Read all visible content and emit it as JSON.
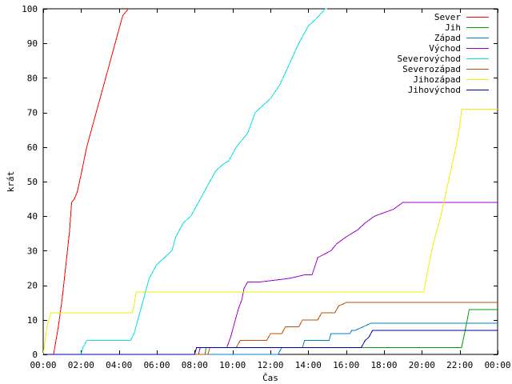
{
  "chart_data": {
    "type": "line",
    "title": "",
    "xlabel": "Čas",
    "ylabel": "krát",
    "xlim": [
      0,
      24
    ],
    "ylim": [
      0,
      100
    ],
    "x_unit": "hours",
    "grid": false,
    "legend": "top-right",
    "xticks": [
      {
        "v": 0,
        "label": "00:00"
      },
      {
        "v": 2,
        "label": "02:00"
      },
      {
        "v": 4,
        "label": "04:00"
      },
      {
        "v": 6,
        "label": "06:00"
      },
      {
        "v": 8,
        "label": "08:00"
      },
      {
        "v": 10,
        "label": "10:00"
      },
      {
        "v": 12,
        "label": "12:00"
      },
      {
        "v": 14,
        "label": "14:00"
      },
      {
        "v": 16,
        "label": "16:00"
      },
      {
        "v": 18,
        "label": "18:00"
      },
      {
        "v": 20,
        "label": "20:00"
      },
      {
        "v": 22,
        "label": "22:00"
      },
      {
        "v": 24,
        "label": "00:00"
      }
    ],
    "yticks": [
      {
        "v": 0,
        "label": "0"
      },
      {
        "v": 10,
        "label": "10"
      },
      {
        "v": 20,
        "label": "20"
      },
      {
        "v": 30,
        "label": "30"
      },
      {
        "v": 40,
        "label": "40"
      },
      {
        "v": 50,
        "label": "50"
      },
      {
        "v": 60,
        "label": "60"
      },
      {
        "v": 70,
        "label": "70"
      },
      {
        "v": 80,
        "label": "80"
      },
      {
        "v": 90,
        "label": "90"
      },
      {
        "v": 100,
        "label": "100"
      }
    ],
    "series": [
      {
        "name": "Sever",
        "color": "#ff0000",
        "x": [
          0,
          0.55,
          0.8,
          1.0,
          1.2,
          1.4,
          1.5,
          1.65,
          1.8,
          2.0,
          2.3,
          2.6,
          3.0,
          3.4,
          3.8,
          4.2,
          4.5
        ],
        "y": [
          0,
          0,
          8,
          16,
          26,
          36,
          44,
          45,
          47,
          52,
          60,
          66,
          74,
          82,
          90,
          98,
          100
        ]
      },
      {
        "name": "Jih",
        "color": "#00a000",
        "x": [
          0,
          8.55,
          8.6,
          22.1,
          22.25,
          22.4,
          22.5,
          23.0,
          24
        ],
        "y": [
          0,
          0,
          2,
          2,
          6,
          10,
          13,
          13,
          13
        ]
      },
      {
        "name": "Západ",
        "color": "#0080c0",
        "x": [
          0,
          12.4,
          12.5,
          12.6,
          13.7,
          13.8,
          15.1,
          15.2,
          16.2,
          16.3,
          16.5,
          17.3,
          17.4,
          23.4,
          24
        ],
        "y": [
          0,
          0,
          1,
          2,
          2,
          4,
          4,
          6,
          6,
          7,
          7,
          9,
          9,
          9,
          9
        ]
      },
      {
        "name": "Východ",
        "color": "#a000d0",
        "x": [
          0,
          8.2,
          8.3,
          9.7,
          9.9,
          10.1,
          10.3,
          10.5,
          10.6,
          10.8,
          11.5,
          13.0,
          13.8,
          14.2,
          14.5,
          15.2,
          15.5,
          16.0,
          16.6,
          17.0,
          17.5,
          18.5,
          19.0,
          24
        ],
        "y": [
          0,
          0,
          2,
          2,
          5,
          9,
          13,
          16,
          19,
          21,
          21,
          22,
          23,
          23,
          28,
          30,
          32,
          34,
          36,
          38,
          40,
          42,
          44,
          44
        ]
      },
      {
        "name": "Severovýchod",
        "color": "#00e0e0",
        "x": [
          0,
          2.0,
          2.1,
          2.3,
          4.6,
          4.8,
          5.0,
          5.2,
          5.4,
          5.6,
          6.0,
          6.4,
          6.8,
          7.0,
          7.4,
          7.8,
          8.0,
          8.4,
          8.8,
          9.1,
          9.5,
          9.8,
          10.2,
          10.8,
          11.2,
          11.6,
          12.0,
          12.5,
          13.0,
          13.5,
          14.0,
          14.4,
          14.9,
          15.0
        ],
        "y": [
          0,
          0,
          2,
          4,
          4,
          6,
          10,
          14,
          18,
          22,
          26,
          28,
          30,
          34,
          38,
          40,
          42,
          46,
          50,
          53,
          55,
          56,
          60,
          64,
          70,
          72,
          74,
          78,
          84,
          90,
          95,
          97,
          100,
          100
        ]
      },
      {
        "name": "Severozápad",
        "color": "#c05000",
        "x": [
          0,
          8.7,
          8.8,
          10.2,
          10.4,
          11.8,
          12.0,
          12.6,
          12.8,
          13.5,
          13.7,
          14.5,
          14.7,
          15.4,
          15.6,
          16.0,
          24
        ],
        "y": [
          0,
          0,
          2,
          2,
          4,
          4,
          6,
          6,
          8,
          8,
          10,
          10,
          12,
          12,
          14,
          15,
          15
        ]
      },
      {
        "name": "Jihozápad",
        "color": "#f0f000",
        "x": [
          0,
          0.2,
          0.4,
          4.7,
          4.8,
          4.9,
          20.1,
          20.3,
          20.6,
          21.0,
          21.4,
          21.8,
          22.0,
          22.1,
          24
        ],
        "y": [
          0,
          8,
          12,
          12,
          14,
          18,
          18,
          24,
          32,
          40,
          50,
          60,
          66,
          71,
          71
        ]
      },
      {
        "name": "Jihovýchod",
        "color": "#0000a0",
        "x": [
          0,
          8.0,
          8.1,
          16.8,
          17.0,
          17.2,
          17.4,
          17.5,
          24
        ],
        "y": [
          0,
          0,
          2,
          2,
          4,
          5,
          7,
          7,
          7
        ]
      }
    ]
  }
}
